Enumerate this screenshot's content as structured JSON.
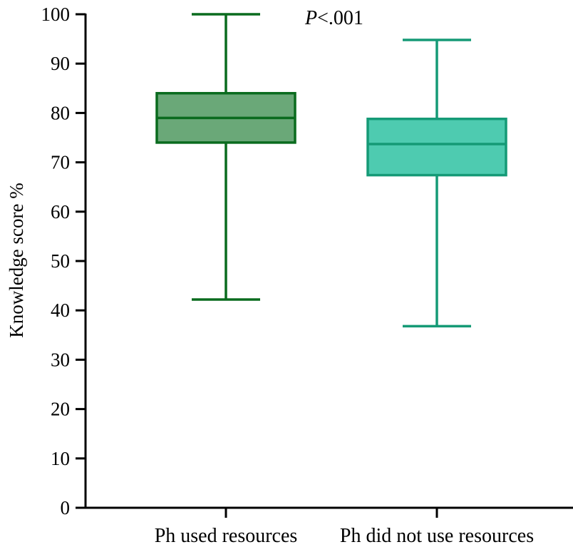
{
  "chart_data": {
    "type": "box",
    "ylabel": "Knowledge score %",
    "ylim": [
      0,
      100
    ],
    "yticks": [
      0,
      10,
      20,
      30,
      40,
      50,
      60,
      70,
      80,
      90,
      100
    ],
    "categories": [
      "Ph used resources",
      "Ph did not use resources"
    ],
    "boxes": [
      {
        "category": "Ph used resources",
        "min": 42.2,
        "q1": 74.0,
        "median": 79.0,
        "q3": 84.0,
        "max": 100.0,
        "fill": "#6aa878",
        "stroke": "#0a6b1e"
      },
      {
        "category": "Ph did not use resources",
        "min": 36.8,
        "q1": 67.4,
        "median": 73.7,
        "q3": 78.8,
        "max": 94.8,
        "fill": "#4ecbb0",
        "stroke": "#159a76"
      }
    ],
    "annotation": {
      "italic": "P",
      "rest": "<.001"
    },
    "grid": false
  }
}
